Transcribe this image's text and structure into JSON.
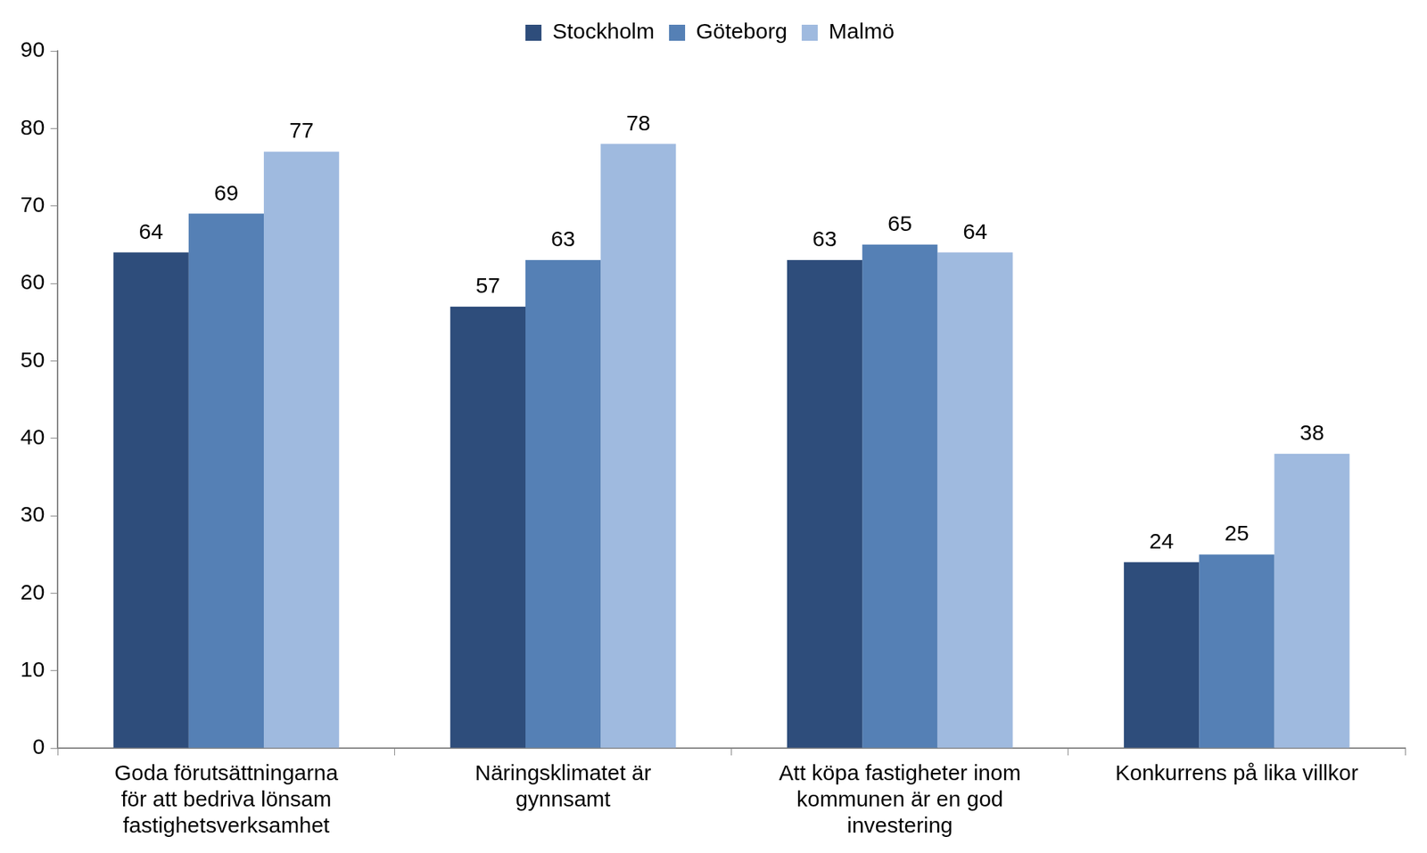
{
  "chart_data": {
    "type": "bar",
    "categories": [
      [
        "Goda förutsättningarna",
        "för att bedriva lönsam",
        "fastighetsverksamhet"
      ],
      [
        "Näringsklimatet är",
        "gynnsamt"
      ],
      [
        "Att köpa fastigheter inom",
        "kommunen är en god",
        "investering"
      ],
      [
        "Konkurrens på lika villkor"
      ]
    ],
    "series": [
      {
        "name": "Stockholm",
        "color": "#2e4d7b",
        "values": [
          64,
          57,
          63,
          24
        ]
      },
      {
        "name": "Göteborg",
        "color": "#5580b5",
        "values": [
          69,
          63,
          65,
          25
        ]
      },
      {
        "name": "Malmö",
        "color": "#9fbadf",
        "values": [
          77,
          78,
          64,
          38
        ]
      }
    ],
    "ylim": [
      0,
      90
    ],
    "yticks": [
      0,
      10,
      20,
      30,
      40,
      50,
      60,
      70,
      80,
      90
    ],
    "grid": false,
    "legend": "top",
    "data_labels": true
  }
}
